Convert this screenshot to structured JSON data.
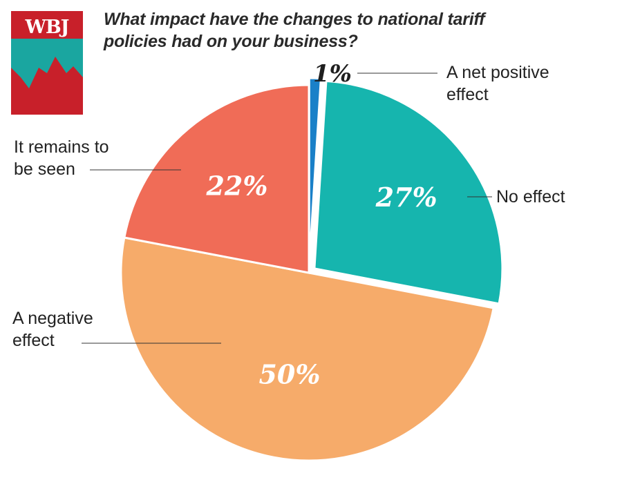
{
  "logo": {
    "text": "WBJ",
    "colors": {
      "red": "#c8202a",
      "teal": "#1aa6a0"
    }
  },
  "chart_data": {
    "type": "pie",
    "title": "What impact have the changes to national tariff policies had on your business?",
    "slices": [
      {
        "label": "A net positive effect",
        "label_lines": [
          "A net positive",
          "effect"
        ],
        "value": 1,
        "value_label": "1%",
        "color": "#1a80c8"
      },
      {
        "label": "No effect",
        "label_lines": [
          "No effect"
        ],
        "value": 27,
        "value_label": "27%",
        "color": "#16b5ae"
      },
      {
        "label": "A negative effect",
        "label_lines": [
          "A negative",
          "effect"
        ],
        "value": 50,
        "value_label": "50%",
        "color": "#f6ab6a"
      },
      {
        "label": "It remains to be seen",
        "label_lines": [
          "It remains to",
          "be seen"
        ],
        "value": 22,
        "value_label": "22%",
        "color": "#f06c57"
      }
    ],
    "exploded": [
      "A net positive effect",
      "No effect"
    ],
    "start_angle": "12 o'clock, clockwise",
    "legend_placement": "callouts around pie"
  }
}
